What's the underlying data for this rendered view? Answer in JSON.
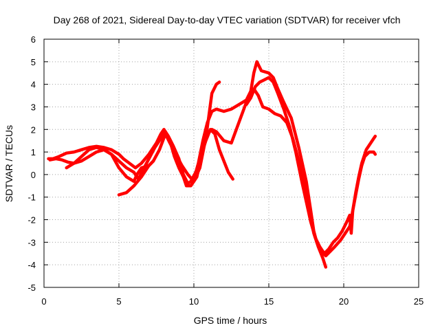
{
  "chart_data": {
    "type": "scatter",
    "title": "Day 268 of 2021, Sidereal Day-to-day VTEC variation (SDTVAR) for receiver vfch",
    "xlabel": "GPS time / hours",
    "ylabel": "SDTVAR / TECUs",
    "xlim": [
      0,
      25
    ],
    "ylim": [
      -5,
      6
    ],
    "xticks": [
      "0",
      "5",
      "10",
      "15",
      "20",
      "25"
    ],
    "yticks": [
      "-5",
      "-4",
      "-3",
      "-2",
      "-1",
      "0",
      "1",
      "2",
      "3",
      "4",
      "5",
      "6"
    ],
    "grid": true,
    "marker": "plus",
    "color": "#ff0000",
    "series": [
      {
        "points": [
          [
            0.3,
            0.7
          ],
          [
            0.6,
            0.7
          ],
          [
            1.0,
            0.8
          ],
          [
            1.5,
            0.95
          ],
          [
            2.0,
            1.0
          ],
          [
            2.5,
            1.1
          ],
          [
            3.0,
            1.2
          ],
          [
            3.5,
            1.25
          ],
          [
            4.0,
            1.2
          ],
          [
            4.5,
            1.1
          ],
          [
            5.0,
            0.9
          ],
          [
            5.3,
            0.7
          ],
          [
            5.7,
            0.5
          ],
          [
            6.1,
            0.3
          ],
          [
            6.5,
            0.5
          ],
          [
            7.0,
            0.9
          ],
          [
            7.5,
            1.4
          ],
          [
            7.8,
            1.8
          ],
          [
            8.0,
            2.0
          ],
          [
            8.3,
            1.7
          ],
          [
            8.6,
            1.3
          ],
          [
            9.0,
            0.7
          ],
          [
            9.3,
            0.0
          ],
          [
            9.6,
            -0.4
          ],
          [
            10.0,
            -0.2
          ],
          [
            10.3,
            0.5
          ],
          [
            10.6,
            1.5
          ],
          [
            10.9,
            2.3
          ],
          [
            11.2,
            2.8
          ],
          [
            11.5,
            2.9
          ],
          [
            12.0,
            2.8
          ],
          [
            12.5,
            2.9
          ],
          [
            13.0,
            3.1
          ],
          [
            13.5,
            3.3
          ],
          [
            13.8,
            3.7
          ],
          [
            14.0,
            4.5
          ],
          [
            14.2,
            5.0
          ],
          [
            14.5,
            4.6
          ],
          [
            15.0,
            4.5
          ],
          [
            15.3,
            4.3
          ],
          [
            15.6,
            3.8
          ],
          [
            16.0,
            3.2
          ],
          [
            16.5,
            2.5
          ],
          [
            17.0,
            1.2
          ],
          [
            17.5,
            -0.3
          ],
          [
            17.8,
            -1.6
          ],
          [
            18.0,
            -2.5
          ],
          [
            18.2,
            -3.0
          ],
          [
            18.5,
            -3.4
          ],
          [
            18.8,
            -3.6
          ],
          [
            19.1,
            -3.4
          ],
          [
            19.4,
            -3.2
          ],
          [
            19.8,
            -2.9
          ],
          [
            20.1,
            -2.6
          ],
          [
            20.4,
            -2.3
          ],
          [
            20.6,
            -1.6
          ],
          [
            20.8,
            -0.8
          ],
          [
            21.0,
            -0.1
          ],
          [
            21.2,
            0.5
          ],
          [
            21.5,
            1.1
          ],
          [
            21.8,
            1.4
          ],
          [
            22.0,
            1.6
          ],
          [
            22.1,
            1.7
          ]
        ]
      },
      {
        "points": [
          [
            0.4,
            0.65
          ],
          [
            0.8,
            0.7
          ],
          [
            1.2,
            0.65
          ],
          [
            1.6,
            0.55
          ],
          [
            2.0,
            0.5
          ],
          [
            2.5,
            0.6
          ],
          [
            3.0,
            0.8
          ],
          [
            3.5,
            1.0
          ],
          [
            4.0,
            1.1
          ],
          [
            4.5,
            0.9
          ],
          [
            5.0,
            0.6
          ],
          [
            5.5,
            0.3
          ],
          [
            6.0,
            0.1
          ],
          [
            6.3,
            -0.2
          ],
          [
            6.6,
            0.2
          ],
          [
            7.0,
            0.7
          ],
          [
            7.4,
            1.2
          ],
          [
            7.8,
            1.6
          ],
          [
            8.1,
            1.9
          ],
          [
            8.4,
            1.5
          ],
          [
            8.7,
            0.8
          ],
          [
            9.0,
            0.3
          ],
          [
            9.3,
            -0.1
          ],
          [
            9.5,
            -0.5
          ],
          [
            9.8,
            -0.5
          ],
          [
            10.2,
            -0.1
          ],
          [
            10.5,
            0.8
          ],
          [
            10.8,
            1.6
          ],
          [
            11.0,
            2.6
          ],
          [
            11.2,
            3.6
          ],
          [
            11.5,
            4.0
          ],
          [
            11.7,
            4.1
          ]
        ]
      },
      {
        "points": [
          [
            1.5,
            0.3
          ],
          [
            2.0,
            0.5
          ],
          [
            2.5,
            0.8
          ],
          [
            3.0,
            1.1
          ],
          [
            3.5,
            1.2
          ],
          [
            4.0,
            1.1
          ],
          [
            4.5,
            0.9
          ],
          [
            5.0,
            0.3
          ],
          [
            5.5,
            -0.1
          ],
          [
            6.0,
            -0.3
          ],
          [
            6.2,
            0.0
          ],
          [
            6.5,
            0.3
          ],
          [
            7.0,
            0.4
          ],
          [
            7.3,
            0.6
          ],
          [
            7.7,
            1.1
          ],
          [
            8.1,
            1.8
          ],
          [
            8.4,
            1.4
          ],
          [
            8.8,
            0.9
          ],
          [
            9.2,
            0.4
          ],
          [
            9.6,
            0.0
          ],
          [
            10.0,
            -0.3
          ],
          [
            10.4,
            0.3
          ],
          [
            10.7,
            1.3
          ],
          [
            10.9,
            1.8
          ],
          [
            11.2,
            2.0
          ],
          [
            11.5,
            1.9
          ],
          [
            12.0,
            1.5
          ],
          [
            12.5,
            1.4
          ],
          [
            13.0,
            2.3
          ],
          [
            13.5,
            3.2
          ],
          [
            13.8,
            3.6
          ],
          [
            14.0,
            3.8
          ],
          [
            14.3,
            3.5
          ],
          [
            14.6,
            3.0
          ],
          [
            15.0,
            2.9
          ],
          [
            15.4,
            2.7
          ],
          [
            15.8,
            2.6
          ],
          [
            16.2,
            2.3
          ],
          [
            16.6,
            1.6
          ],
          [
            17.0,
            0.6
          ],
          [
            17.4,
            -0.6
          ],
          [
            17.7,
            -1.6
          ],
          [
            18.0,
            -2.6
          ],
          [
            18.3,
            -3.2
          ],
          [
            18.6,
            -3.7
          ],
          [
            18.8,
            -4.1
          ]
        ]
      },
      {
        "points": [
          [
            5.0,
            -0.9
          ],
          [
            5.5,
            -0.8
          ],
          [
            6.0,
            -0.5
          ],
          [
            6.5,
            -0.1
          ],
          [
            7.0,
            0.4
          ],
          [
            7.3,
            0.6
          ]
        ]
      },
      {
        "points": [
          [
            9.8,
            -0.3
          ],
          [
            10.2,
            0.2
          ],
          [
            10.5,
            0.9
          ],
          [
            10.8,
            1.5
          ],
          [
            11.1,
            2.0
          ],
          [
            11.4,
            1.8
          ],
          [
            11.7,
            1.1
          ],
          [
            12.0,
            0.6
          ],
          [
            12.3,
            0.1
          ],
          [
            12.6,
            -0.2
          ]
        ]
      },
      {
        "points": [
          [
            13.5,
            3.1
          ],
          [
            13.8,
            3.4
          ],
          [
            14.1,
            3.9
          ],
          [
            14.4,
            4.1
          ],
          [
            14.7,
            4.2
          ],
          [
            15.0,
            4.3
          ],
          [
            15.3,
            4.1
          ],
          [
            15.6,
            3.6
          ],
          [
            16.0,
            2.9
          ],
          [
            16.4,
            2.1
          ],
          [
            16.8,
            1.0
          ],
          [
            17.2,
            -0.3
          ],
          [
            17.5,
            -1.2
          ],
          [
            17.8,
            -2.1
          ],
          [
            18.1,
            -2.8
          ],
          [
            18.4,
            -3.2
          ],
          [
            18.7,
            -3.5
          ],
          [
            19.0,
            -3.3
          ],
          [
            19.3,
            -3.0
          ],
          [
            19.6,
            -2.8
          ],
          [
            19.9,
            -2.5
          ],
          [
            20.2,
            -2.1
          ],
          [
            20.4,
            -1.8
          ],
          [
            20.5,
            -2.6
          ],
          [
            20.6,
            -1.6
          ],
          [
            20.8,
            -0.9
          ],
          [
            21.0,
            -0.2
          ],
          [
            21.2,
            0.4
          ],
          [
            21.4,
            0.8
          ],
          [
            21.7,
            1.0
          ],
          [
            22.0,
            1.0
          ],
          [
            22.1,
            0.9
          ]
        ]
      }
    ]
  }
}
